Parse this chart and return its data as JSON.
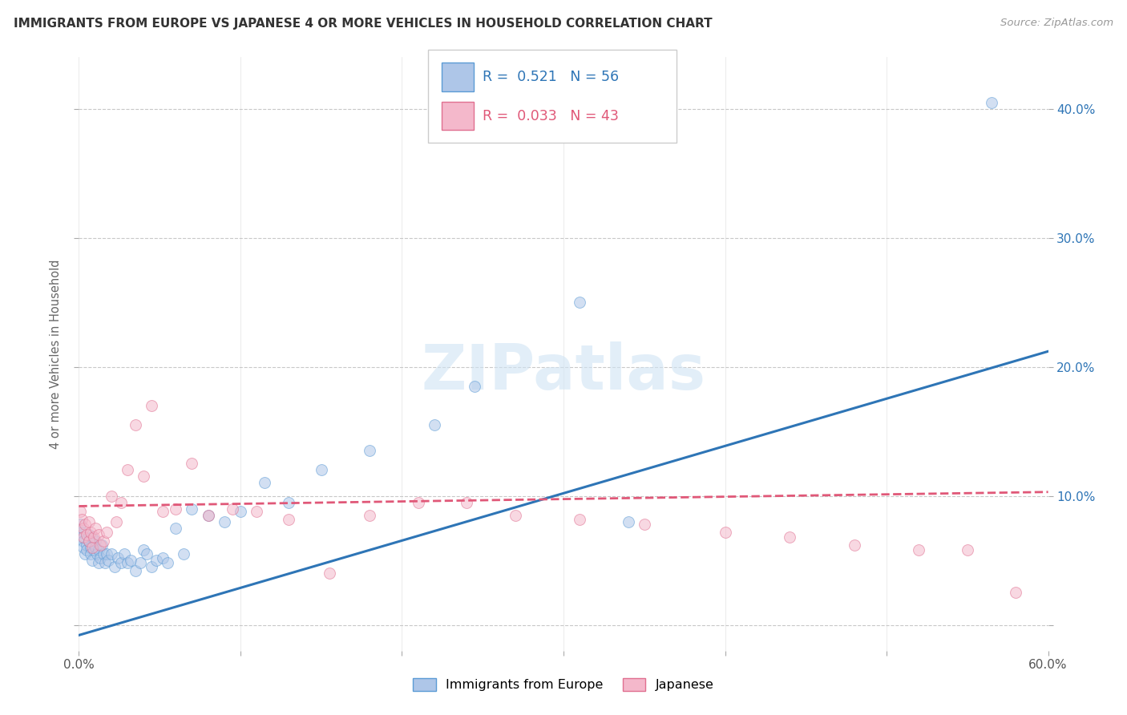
{
  "title": "IMMIGRANTS FROM EUROPE VS JAPANESE 4 OR MORE VEHICLES IN HOUSEHOLD CORRELATION CHART",
  "source": "Source: ZipAtlas.com",
  "ylabel": "4 or more Vehicles in Household",
  "x_min": 0.0,
  "x_max": 0.6,
  "y_min": -0.02,
  "y_max": 0.44,
  "x_ticks": [
    0.0,
    0.1,
    0.2,
    0.3,
    0.4,
    0.5,
    0.6
  ],
  "x_tick_labels_show": [
    "0.0%",
    "",
    "",
    "",
    "",
    "",
    "60.0%"
  ],
  "y_ticks": [
    0.0,
    0.1,
    0.2,
    0.3,
    0.4
  ],
  "y_tick_labels_right": [
    "",
    "10.0%",
    "20.0%",
    "30.0%",
    "40.0%"
  ],
  "blue_color": "#aec6e8",
  "blue_edge_color": "#5b9bd5",
  "blue_line_color": "#2e75b6",
  "pink_color": "#f4b8cb",
  "pink_edge_color": "#e07090",
  "pink_line_color": "#e05878",
  "R_blue": 0.521,
  "N_blue": 56,
  "R_pink": 0.033,
  "N_pink": 43,
  "blue_regression_x0": 0.0,
  "blue_regression_y0": -0.008,
  "blue_regression_x1": 0.6,
  "blue_regression_y1": 0.212,
  "pink_regression_x0": 0.0,
  "pink_regression_y0": 0.092,
  "pink_regression_x1": 0.6,
  "pink_regression_y1": 0.103,
  "blue_scatter_x": [
    0.001,
    0.002,
    0.002,
    0.003,
    0.003,
    0.004,
    0.005,
    0.005,
    0.006,
    0.006,
    0.007,
    0.007,
    0.008,
    0.008,
    0.009,
    0.01,
    0.01,
    0.011,
    0.012,
    0.012,
    0.013,
    0.014,
    0.015,
    0.016,
    0.017,
    0.018,
    0.02,
    0.022,
    0.024,
    0.026,
    0.028,
    0.03,
    0.032,
    0.035,
    0.038,
    0.04,
    0.042,
    0.045,
    0.048,
    0.052,
    0.055,
    0.06,
    0.065,
    0.07,
    0.08,
    0.09,
    0.1,
    0.115,
    0.13,
    0.15,
    0.18,
    0.22,
    0.245,
    0.31,
    0.34,
    0.565
  ],
  "blue_scatter_y": [
    0.078,
    0.072,
    0.068,
    0.065,
    0.06,
    0.055,
    0.062,
    0.058,
    0.07,
    0.065,
    0.06,
    0.055,
    0.068,
    0.05,
    0.058,
    0.065,
    0.06,
    0.055,
    0.058,
    0.048,
    0.052,
    0.062,
    0.055,
    0.048,
    0.055,
    0.05,
    0.055,
    0.045,
    0.052,
    0.048,
    0.055,
    0.048,
    0.05,
    0.042,
    0.048,
    0.058,
    0.055,
    0.045,
    0.05,
    0.052,
    0.048,
    0.075,
    0.055,
    0.09,
    0.085,
    0.08,
    0.088,
    0.11,
    0.095,
    0.12,
    0.135,
    0.155,
    0.185,
    0.25,
    0.08,
    0.405
  ],
  "pink_scatter_x": [
    0.001,
    0.002,
    0.003,
    0.003,
    0.004,
    0.005,
    0.006,
    0.006,
    0.007,
    0.008,
    0.009,
    0.01,
    0.012,
    0.013,
    0.015,
    0.017,
    0.02,
    0.023,
    0.026,
    0.03,
    0.035,
    0.04,
    0.045,
    0.052,
    0.06,
    0.07,
    0.08,
    0.095,
    0.11,
    0.13,
    0.155,
    0.18,
    0.21,
    0.24,
    0.27,
    0.31,
    0.35,
    0.4,
    0.44,
    0.48,
    0.52,
    0.55,
    0.58
  ],
  "pink_scatter_y": [
    0.088,
    0.082,
    0.075,
    0.068,
    0.078,
    0.07,
    0.08,
    0.065,
    0.072,
    0.06,
    0.068,
    0.075,
    0.07,
    0.062,
    0.065,
    0.072,
    0.1,
    0.08,
    0.095,
    0.12,
    0.155,
    0.115,
    0.17,
    0.088,
    0.09,
    0.125,
    0.085,
    0.09,
    0.088,
    0.082,
    0.04,
    0.085,
    0.095,
    0.095,
    0.085,
    0.082,
    0.078,
    0.072,
    0.068,
    0.062,
    0.058,
    0.058,
    0.025
  ],
  "watermark": "ZIPatlas",
  "dot_size": 100,
  "dot_alpha": 0.55,
  "grid_color": "#c8c8c8",
  "legend_border_color": "#cccccc",
  "background_color": "#ffffff"
}
